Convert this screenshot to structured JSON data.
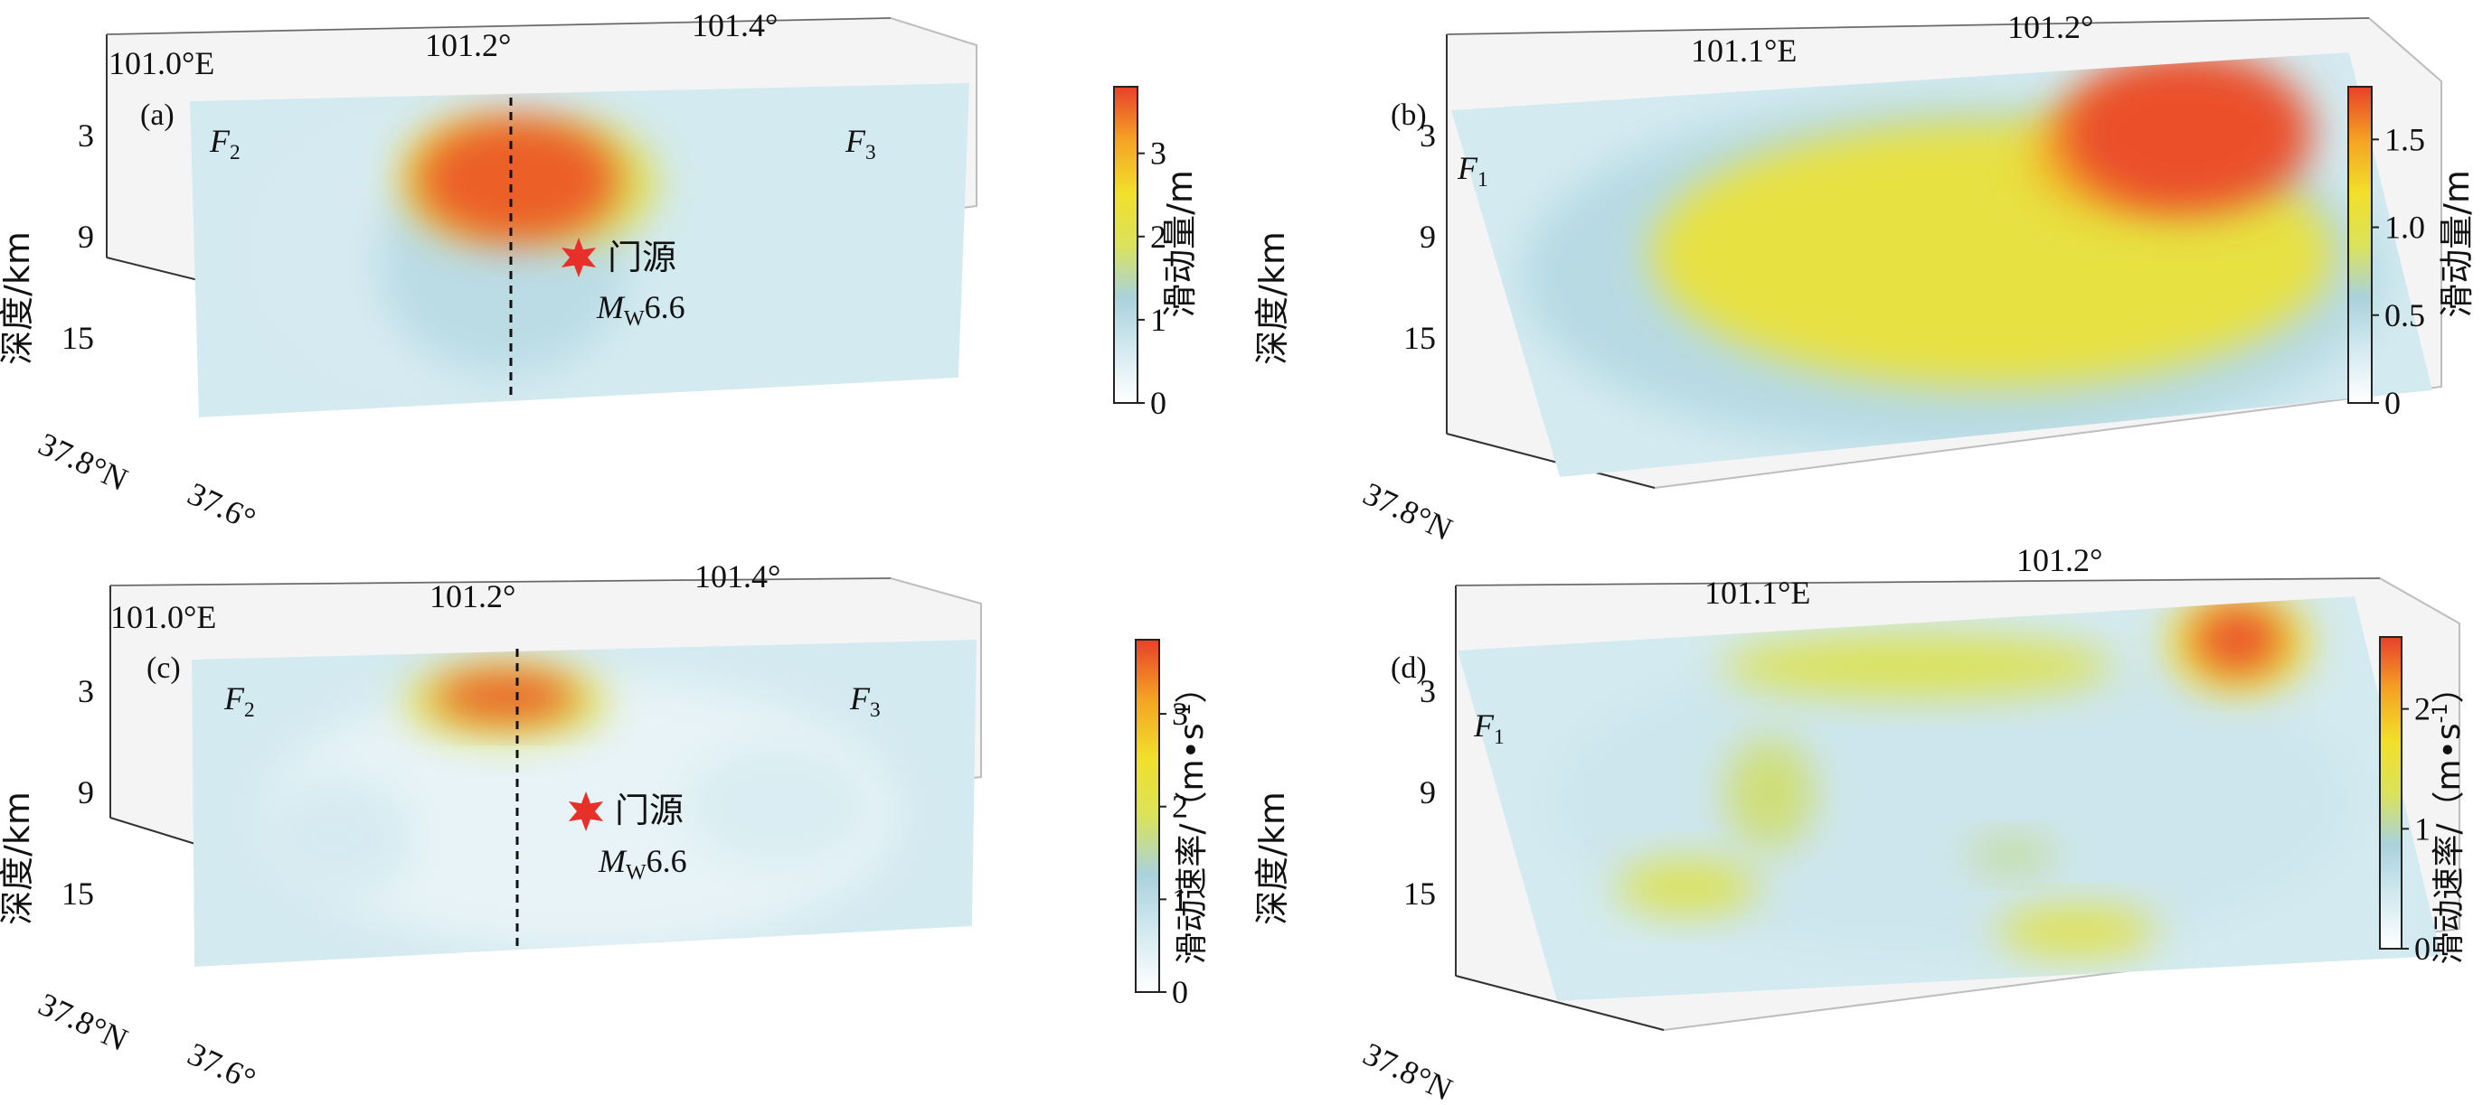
{
  "colors": {
    "colormap": [
      "#ffffff",
      "#d4eaf0",
      "#a9d2dd",
      "#dbe25a",
      "#f2df2a",
      "#f4a224",
      "#e8402a"
    ],
    "epicenter": "#e8302a",
    "fault_line": "#111111",
    "box_line": "#bdbdbd"
  },
  "chart_data": [
    {
      "panel": "(a)",
      "type": "heatmap",
      "xlabel_top_ticks": [
        "101.0°E",
        "101.2°",
        "101.4°"
      ],
      "ylabel": "深度/km",
      "yticks": [
        "3",
        "9",
        "15"
      ],
      "lat_ticks": [
        "37.8°N",
        "37.6°"
      ],
      "fault_labels": [
        {
          "name": "F",
          "sub": "2"
        },
        {
          "name": "F",
          "sub": "3"
        }
      ],
      "epicenter": {
        "name": "门源",
        "mag_prefix": "M",
        "mag_sub": "W",
        "mag_value": "6.6"
      },
      "colorbar": {
        "label": "滑动量/m",
        "ticks": [
          "0",
          "1",
          "2",
          "3"
        ],
        "range": [
          0,
          3.8
        ]
      },
      "slip_patches": [
        {
          "cx": 0.42,
          "cy": 0.28,
          "rx": 0.13,
          "ry": 0.2,
          "value": 3.6
        },
        {
          "cx": 0.36,
          "cy": 0.27,
          "rx": 0.09,
          "ry": 0.17,
          "value": 2.2
        },
        {
          "cx": 0.5,
          "cy": 0.3,
          "rx": 0.1,
          "ry": 0.18,
          "value": 2.0
        },
        {
          "cx": 0.4,
          "cy": 0.55,
          "rx": 0.16,
          "ry": 0.35,
          "value": 1.0
        },
        {
          "cx": 0.3,
          "cy": 0.5,
          "rx": 0.22,
          "ry": 0.45,
          "value": 0.6
        }
      ]
    },
    {
      "panel": "(b)",
      "type": "heatmap",
      "xlabel_top_ticks": [
        "101.1°E",
        "101.2°"
      ],
      "ylabel": "深度/km",
      "yticks": [
        "3",
        "9",
        "15"
      ],
      "lat_ticks": [
        "37.8°N"
      ],
      "fault_labels": [
        {
          "name": "F",
          "sub": "1"
        }
      ],
      "colorbar": {
        "label": "滑动量/m",
        "ticks": [
          "0",
          "0.5",
          "1.0",
          "1.5"
        ],
        "range": [
          0,
          1.8
        ]
      },
      "slip_patches": [
        {
          "cx": 0.8,
          "cy": 0.2,
          "rx": 0.14,
          "ry": 0.22,
          "value": 1.75
        },
        {
          "cx": 0.72,
          "cy": 0.25,
          "rx": 0.1,
          "ry": 0.15,
          "value": 1.4
        },
        {
          "cx": 0.55,
          "cy": 0.5,
          "rx": 0.38,
          "ry": 0.36,
          "value": 1.05
        },
        {
          "cx": 0.5,
          "cy": 0.55,
          "rx": 0.48,
          "ry": 0.48,
          "value": 0.5
        }
      ]
    },
    {
      "panel": "(c)",
      "type": "heatmap",
      "xlabel_top_ticks": [
        "101.0°E",
        "101.2°",
        "101.4°"
      ],
      "ylabel": "深度/km",
      "yticks": [
        "3",
        "9",
        "15"
      ],
      "lat_ticks": [
        "37.8°N",
        "37.6°"
      ],
      "fault_labels": [
        {
          "name": "F",
          "sub": "2"
        },
        {
          "name": "F",
          "sub": "3"
        }
      ],
      "epicenter": {
        "name": "门源",
        "mag_prefix": "M",
        "mag_sub": "W",
        "mag_value": "6.6"
      },
      "colorbar": {
        "label_main": "滑动速率/（m•s",
        "label_sup": "-1",
        "label_end": "）",
        "ticks": [
          "0",
          "1",
          "2",
          "3"
        ],
        "range": [
          0,
          3.8
        ]
      },
      "slip_patches": [
        {
          "cx": 0.4,
          "cy": 0.15,
          "rx": 0.09,
          "ry": 0.08,
          "value": 3.6
        },
        {
          "cx": 0.4,
          "cy": 0.17,
          "rx": 0.13,
          "ry": 0.12,
          "value": 2.0
        },
        {
          "cx": 0.18,
          "cy": 0.6,
          "rx": 0.1,
          "ry": 0.2,
          "value": 0.6
        },
        {
          "cx": 0.75,
          "cy": 0.55,
          "rx": 0.12,
          "ry": 0.2,
          "value": 0.55
        },
        {
          "cx": 0.5,
          "cy": 0.55,
          "rx": 0.4,
          "ry": 0.45,
          "value": 0.35
        }
      ]
    },
    {
      "panel": "(d)",
      "type": "heatmap",
      "xlabel_top_ticks": [
        "101.1°E",
        "101.2°"
      ],
      "ylabel": "深度/km",
      "yticks": [
        "3",
        "9",
        "15"
      ],
      "lat_ticks": [
        "37.8°N"
      ],
      "fault_labels": [
        {
          "name": "F",
          "sub": "1"
        }
      ],
      "colorbar": {
        "label_main": "滑动速率/（m•s",
        "label_sup": "-1",
        "label_end": "）",
        "ticks": [
          "0",
          "1",
          "2"
        ],
        "range": [
          0,
          2.6
        ]
      },
      "slip_patches": [
        {
          "cx": 0.86,
          "cy": 0.1,
          "rx": 0.05,
          "ry": 0.1,
          "value": 2.5
        },
        {
          "cx": 0.86,
          "cy": 0.11,
          "rx": 0.08,
          "ry": 0.14,
          "value": 1.6
        },
        {
          "cx": 0.5,
          "cy": 0.12,
          "rx": 0.22,
          "ry": 0.09,
          "value": 1.3
        },
        {
          "cx": 0.3,
          "cy": 0.45,
          "rx": 0.05,
          "ry": 0.16,
          "value": 1.2
        },
        {
          "cx": 0.18,
          "cy": 0.7,
          "rx": 0.08,
          "ry": 0.08,
          "value": 1.3
        },
        {
          "cx": 0.55,
          "cy": 0.66,
          "rx": 0.05,
          "ry": 0.05,
          "value": 1.1
        },
        {
          "cx": 0.6,
          "cy": 0.88,
          "rx": 0.09,
          "ry": 0.07,
          "value": 1.4
        },
        {
          "cx": 0.5,
          "cy": 0.5,
          "rx": 0.45,
          "ry": 0.45,
          "value": 0.5
        }
      ]
    }
  ]
}
